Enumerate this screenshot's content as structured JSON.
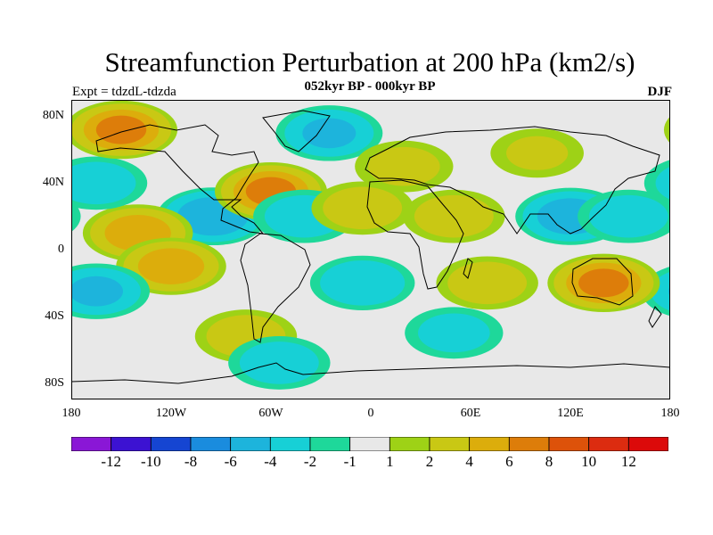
{
  "title": "Streamfunction Perturbation at 200 hPa (km2/s)",
  "subtitle": "052kyr BP - 000kyr BP",
  "left_subtitle": "Expt = tdzdL-tdzda",
  "right_subtitle": "DJF",
  "y_ticks": [
    "80N",
    "40N",
    "0",
    "40S",
    "80S"
  ],
  "x_ticks": [
    "180",
    "120W",
    "60W",
    "0",
    "60E",
    "120E",
    "180"
  ],
  "colorbar": {
    "labels": [
      "-12",
      "-10",
      "-8",
      "-6",
      "-4",
      "-2",
      "-1",
      "1",
      "2",
      "4",
      "6",
      "8",
      "10",
      "12"
    ],
    "colors": [
      "#8a17d6",
      "#3c12d2",
      "#1545d2",
      "#1a8cde",
      "#1db4dc",
      "#17d0d6",
      "#1ed89a",
      "#e8e8e8",
      "#9ed216",
      "#c9c814",
      "#dcad0c",
      "#dd7d0a",
      "#dd520a",
      "#dc2c10",
      "#dc0a0a"
    ]
  },
  "chart_data": {
    "type": "contour-map",
    "title": "Streamfunction Perturbation at 200 hPa (km2/s)",
    "subtitle": "052kyr BP - 000kyr BP",
    "experiment": "Expt = tdzdL-tdzda",
    "season": "DJF",
    "units": "km2/s",
    "x_range_deg": [
      -180,
      180
    ],
    "y_range_deg": [
      -90,
      90
    ],
    "contour_levels": [
      -12,
      -10,
      -8,
      -6,
      -4,
      -2,
      -1,
      1,
      2,
      4,
      6,
      8,
      10,
      12
    ],
    "features": [
      {
        "lon": -95,
        "lat": 20,
        "value": -5.5
      },
      {
        "lon": -140,
        "lat": 10,
        "value": 5
      },
      {
        "lon": -120,
        "lat": -10,
        "value": 5
      },
      {
        "lon": -165,
        "lat": 40,
        "value": -3
      },
      {
        "lon": -150,
        "lat": 72,
        "value": 6
      },
      {
        "lon": -60,
        "lat": 35,
        "value": 6
      },
      {
        "lon": -25,
        "lat": 70,
        "value": -4
      },
      {
        "lon": -40,
        "lat": 20,
        "value": -3
      },
      {
        "lon": -165,
        "lat": -25,
        "value": -4
      },
      {
        "lon": -75,
        "lat": -52,
        "value": 3
      },
      {
        "lon": -55,
        "lat": -68,
        "value": -3
      },
      {
        "lon": -5,
        "lat": -20,
        "value": -3.5
      },
      {
        "lon": -5,
        "lat": 25,
        "value": 3
      },
      {
        "lon": 50,
        "lat": 20,
        "value": 3
      },
      {
        "lon": 20,
        "lat": 50,
        "value": 2.5
      },
      {
        "lon": 100,
        "lat": 58,
        "value": 2
      },
      {
        "lon": 120,
        "lat": 20,
        "value": -5
      },
      {
        "lon": 155,
        "lat": 20,
        "value": -3
      },
      {
        "lon": 140,
        "lat": -20,
        "value": 6
      },
      {
        "lon": 70,
        "lat": -20,
        "value": 3
      },
      {
        "lon": 50,
        "lat": -50,
        "value": -2.5
      }
    ]
  }
}
